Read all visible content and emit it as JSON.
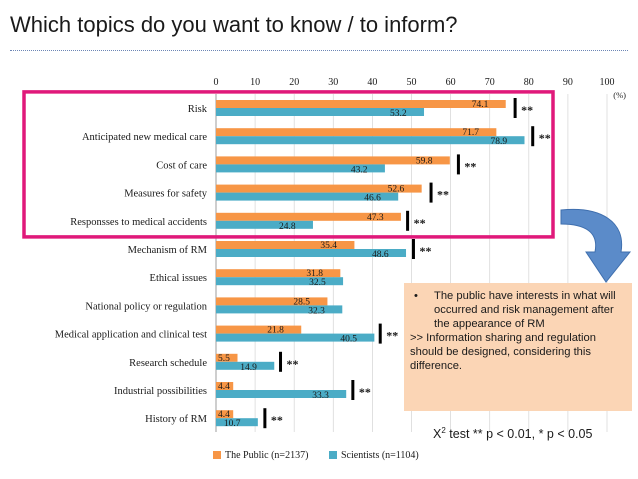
{
  "title": "Which topics do you want to know / to inform?",
  "colors": {
    "public": "#f79646",
    "scientists": "#4bacc6",
    "highlight_box": "#e0197a",
    "arrow": "#5b8bc9",
    "note_bg": "#fbd5b5",
    "significance_bar": "#000000"
  },
  "chart_data": {
    "type": "bar",
    "orientation": "horizontal",
    "unit_label": "(%)",
    "xlim": [
      0,
      100
    ],
    "x_ticks": [
      "0",
      "10",
      "20",
      "30",
      "40",
      "50",
      "60",
      "70",
      "80",
      "90",
      "100"
    ],
    "grid": true,
    "legend_position": "bottom",
    "categories": [
      "Risk",
      "Anticipated new medical care",
      "Cost of care",
      "Measures for safety",
      "Responsses to medical accidents",
      "Mechanism of RM",
      "Ethical issues",
      "National policy or regulation",
      "Medical application and clinical test",
      "Research schedule",
      "Industrial possibilities",
      "History of RM"
    ],
    "series": [
      {
        "name": "The Public (n=2137)",
        "values": [
          74.1,
          71.7,
          59.8,
          52.6,
          47.3,
          35.4,
          31.8,
          28.5,
          21.8,
          5.5,
          4.4,
          4.4
        ]
      },
      {
        "name": "Scientists (n=1104)",
        "values": [
          53.2,
          78.9,
          43.2,
          46.6,
          24.8,
          48.6,
          32.5,
          32.3,
          40.5,
          14.9,
          33.3,
          10.7
        ]
      }
    ],
    "significance": [
      "**",
      "**",
      "**",
      "**",
      "**",
      "**",
      "",
      "",
      "**",
      "**",
      "**",
      "**"
    ],
    "significance_marker_x": [
      76.5,
      81,
      62,
      55,
      49,
      50.5,
      null,
      null,
      42,
      16.5,
      35,
      12.5
    ],
    "highlighted_categories": [
      "Risk",
      "Anticipated new medical care",
      "Cost of care",
      "Measures for safety",
      "Responsses to medical accidents"
    ]
  },
  "note": {
    "bullet": "•",
    "bullet_text": "The public have interests in what will occurred and risk management after the appearance of RM",
    "conclusion": ">> Information sharing and regulation should be designed, considering this difference."
  },
  "test_note": {
    "prefix": "X",
    "sup": "2",
    "rest": " test  ** p < 0.01, * p < 0.05"
  }
}
